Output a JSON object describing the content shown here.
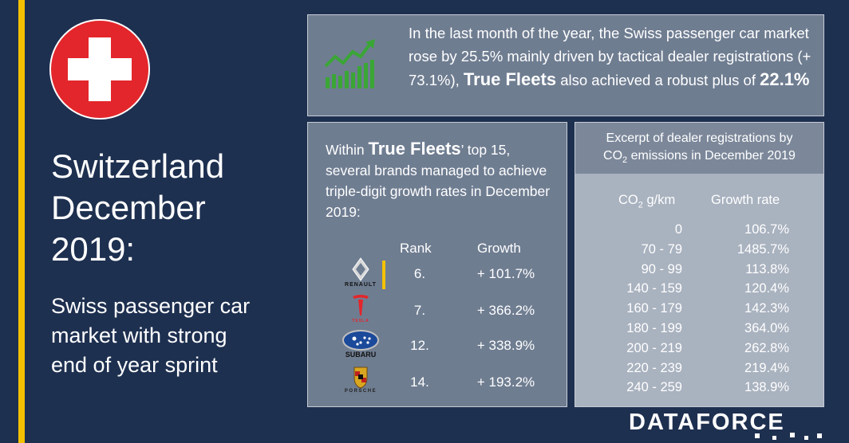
{
  "left": {
    "title_lines": [
      "Switzerland",
      "December",
      "2019:"
    ],
    "subtitle_lines": [
      "Swiss passenger car",
      "market with strong",
      "end of year sprint"
    ]
  },
  "top_box": {
    "text_1": "In the last month of the year, the Swiss passenger car market rose by 25.5% mainly driven  by tactical dealer registrations (+ 73.1%), ",
    "brand": "True Fleets",
    "text_2": " also achieved  a robust plus of ",
    "highlight": "22.1%"
  },
  "mid_box": {
    "intro_1": "Within ",
    "brand": "True Fleets",
    "intro_2": "’ top 15, several brands managed to achieve triple-digit growth rates in December 2019:",
    "rank_header": "Rank",
    "growth_header": "Growth",
    "rows": [
      {
        "logo": "RENAULT",
        "logo_icon": "renault-logo-icon",
        "rank": "6.",
        "growth": "+ 101.7%"
      },
      {
        "logo": "TESLA",
        "logo_icon": "tesla-logo-icon",
        "rank": "7.",
        "growth": "+ 366.2%"
      },
      {
        "logo": "SUBARU",
        "logo_icon": "subaru-logo-icon",
        "rank": "12.",
        "growth": "+ 338.9%"
      },
      {
        "logo": "PORSCHE",
        "logo_icon": "porsche-logo-icon",
        "rank": "14.",
        "growth": "+ 193.2%"
      }
    ]
  },
  "right_box": {
    "title_line1": "Excerpt of dealer registrations by",
    "title_co": "CO",
    "title_sub": "2",
    "title_line2": " emissions in December 2019",
    "col1_co": "CO",
    "col1_sub": "2",
    "col1_rest": " g/km",
    "col2": "Growth rate",
    "rows": [
      {
        "co2": "0",
        "growth": "106.7%"
      },
      {
        "co2": "70 - 79",
        "growth": "1485.7%"
      },
      {
        "co2": "90 - 99",
        "growth": "113.8%"
      },
      {
        "co2": "140 - 159",
        "growth": "120.4%"
      },
      {
        "co2": "160 - 179",
        "growth": "142.3%"
      },
      {
        "co2": "180 - 199",
        "growth": "364.0%"
      },
      {
        "co2": "200 - 219",
        "growth": "262.8%"
      },
      {
        "co2": "220 - 239",
        "growth": "219.4%"
      },
      {
        "co2": "240 - 259",
        "growth": "138.9%"
      }
    ]
  },
  "footer": {
    "logo": "DATAFORCE"
  },
  "colors": {
    "background": "#1e3050",
    "accent_yellow": "#f2c200",
    "flag_red": "#e3262b",
    "panel": "#6f7d91",
    "panel_light": "#a9b2bf",
    "chart_green": "#3aa635"
  }
}
